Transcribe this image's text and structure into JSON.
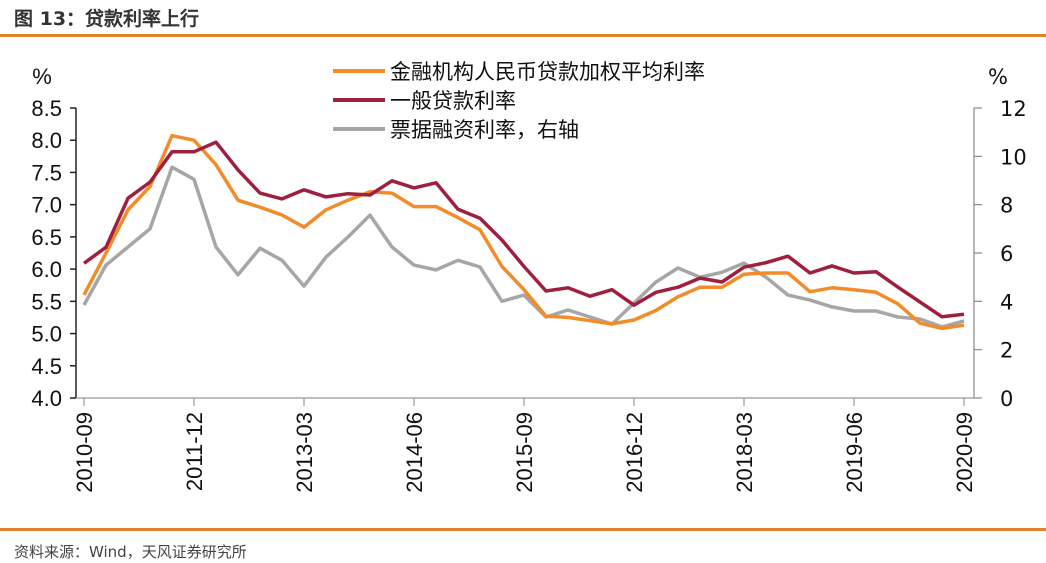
{
  "header": {
    "title": "图 13：贷款利率上行"
  },
  "footer": {
    "source": "资料来源：Wind，天风证券研究所"
  },
  "colors": {
    "rule": "#e0822f",
    "weighted": "#f28c28",
    "general": "#9e1f3f",
    "bill": "#a6a6a6",
    "axis": "#333333"
  },
  "chart_data": {
    "type": "line",
    "title": "贷款利率上行",
    "left_unit": "%",
    "right_unit": "%",
    "left_ylim": [
      4.0,
      8.5
    ],
    "left_ticks": [
      "8.5",
      "8.0",
      "7.5",
      "7.0",
      "6.5",
      "6.0",
      "5.5",
      "5.0",
      "4.5",
      "4.0"
    ],
    "right_ylim": [
      0,
      12
    ],
    "right_ticks": [
      "12",
      "10",
      "8",
      "6",
      "4",
      "2",
      "0"
    ],
    "x_tick_labels": [
      "2010-09",
      "2011-12",
      "2013-03",
      "2014-06",
      "2015-09",
      "2016-12",
      "2018-03",
      "2019-06",
      "2020-09"
    ],
    "x_frequency": "quarterly",
    "x_start": "2010-09",
    "legend_position": "top-center",
    "grid": false,
    "series": [
      {
        "name": "金融机构人民币贷款加权平均利率",
        "axis": "left",
        "color_key": "weighted",
        "values": [
          5.6,
          6.25,
          6.92,
          7.28,
          8.07,
          8.0,
          7.62,
          7.07,
          6.96,
          6.84,
          6.65,
          6.92,
          7.07,
          7.2,
          7.18,
          6.97,
          6.97,
          6.8,
          6.61,
          6.04,
          5.68,
          5.27,
          5.25,
          5.2,
          5.15,
          5.21,
          5.36,
          5.57,
          5.72,
          5.72,
          5.92,
          5.94,
          5.94,
          5.65,
          5.71,
          5.68,
          5.64,
          5.46,
          5.16,
          5.08,
          5.13
        ]
      },
      {
        "name": "一般贷款利率",
        "axis": "left",
        "color_key": "general",
        "values": [
          6.09,
          6.34,
          7.1,
          7.35,
          7.82,
          7.82,
          7.97,
          7.54,
          7.18,
          7.09,
          7.23,
          7.12,
          7.17,
          7.15,
          7.37,
          7.26,
          7.34,
          6.93,
          6.79,
          6.45,
          6.04,
          5.66,
          5.71,
          5.58,
          5.68,
          5.44,
          5.64,
          5.72,
          5.86,
          5.8,
          6.03,
          6.1,
          6.2,
          5.94,
          6.05,
          5.94,
          5.96,
          5.72,
          5.49,
          5.26,
          5.3
        ]
      },
      {
        "name": "票据融资利率，右轴",
        "axis": "right",
        "color_key": "bill",
        "values": [
          3.85,
          5.5,
          6.25,
          7.0,
          9.55,
          9.05,
          6.25,
          5.1,
          6.2,
          5.7,
          4.63,
          5.83,
          6.66,
          7.57,
          6.25,
          5.5,
          5.3,
          5.7,
          5.42,
          4.0,
          4.26,
          3.35,
          3.64,
          3.35,
          3.06,
          3.93,
          4.8,
          5.38,
          5.0,
          5.2,
          5.58,
          5.0,
          4.26,
          4.05,
          3.77,
          3.6,
          3.6,
          3.35,
          3.27,
          2.94,
          3.19
        ]
      }
    ]
  }
}
